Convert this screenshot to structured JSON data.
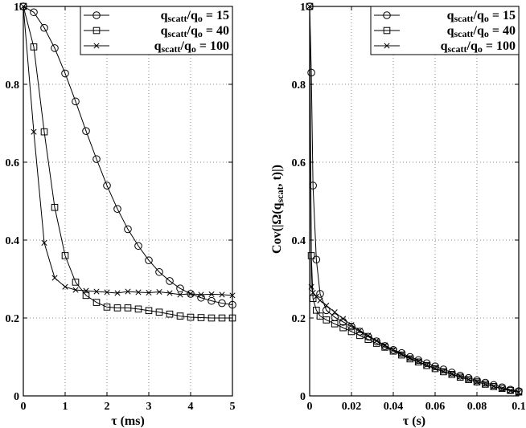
{
  "chart_data": [
    {
      "type": "line",
      "xlabel": "τ   (ms)",
      "ylabel": "",
      "xlim": [
        0,
        5
      ],
      "ylim": [
        0,
        1
      ],
      "xticks": [
        "0",
        "1",
        "2",
        "3",
        "4",
        "5"
      ],
      "yticks": [
        "0",
        "0.2",
        "0.4",
        "0.6",
        "0.8",
        "1"
      ],
      "grid": true,
      "legend_position": "top-right",
      "series": [
        {
          "name": "qscatt/qo = 15",
          "marker": "circle",
          "x": [
            0,
            0.25,
            0.5,
            0.75,
            1.0,
            1.25,
            1.5,
            1.75,
            2.0,
            2.25,
            2.5,
            2.75,
            3.0,
            3.25,
            3.5,
            3.75,
            4.0,
            4.25,
            4.5,
            4.75,
            5.0
          ],
          "y": [
            1.0,
            0.985,
            0.945,
            0.893,
            0.828,
            0.756,
            0.68,
            0.608,
            0.54,
            0.48,
            0.428,
            0.385,
            0.348,
            0.318,
            0.295,
            0.276,
            0.262,
            0.252,
            0.244,
            0.238,
            0.234
          ]
        },
        {
          "name": "qscatt/qo = 40",
          "marker": "square",
          "x": [
            0,
            0.25,
            0.5,
            0.75,
            1.0,
            1.25,
            1.5,
            1.75,
            2.0,
            2.25,
            2.5,
            2.75,
            3.0,
            3.25,
            3.5,
            3.75,
            4.0,
            4.25,
            4.5,
            4.75,
            5.0
          ],
          "y": [
            1.0,
            0.896,
            0.678,
            0.484,
            0.36,
            0.292,
            0.258,
            0.24,
            0.228,
            0.226,
            0.226,
            0.223,
            0.219,
            0.215,
            0.21,
            0.205,
            0.202,
            0.201,
            0.2,
            0.2,
            0.2
          ]
        },
        {
          "name": "qscatt/qo = 100",
          "marker": "x",
          "x": [
            0,
            0.25,
            0.5,
            0.75,
            1.0,
            1.25,
            1.5,
            1.75,
            2.0,
            2.25,
            2.5,
            2.75,
            3.0,
            3.25,
            3.5,
            3.75,
            4.0,
            4.25,
            4.5,
            4.75,
            5.0
          ],
          "y": [
            1.0,
            0.678,
            0.393,
            0.303,
            0.28,
            0.272,
            0.27,
            0.268,
            0.266,
            0.264,
            0.268,
            0.266,
            0.265,
            0.267,
            0.264,
            0.26,
            0.262,
            0.26,
            0.261,
            0.26,
            0.258
          ]
        }
      ]
    },
    {
      "type": "line",
      "xlabel": "τ   (s)",
      "ylabel": "Cov(|Ω(qscat, t)|)",
      "xlim": [
        0,
        0.1
      ],
      "ylim": [
        0,
        1
      ],
      "xticks": [
        "0",
        "0.02",
        "0.04",
        "0.06",
        "0.08",
        "0.1"
      ],
      "yticks": [
        "0",
        "0.2",
        "0.4",
        "0.6",
        "0.8",
        "1"
      ],
      "grid": true,
      "legend_position": "top-right",
      "series": [
        {
          "name": "qscatt/qo = 15",
          "marker": "circle",
          "x": [
            0,
            0.0008,
            0.0016,
            0.0032,
            0.005,
            0.008,
            0.012,
            0.016,
            0.02,
            0.024,
            0.028,
            0.032,
            0.036,
            0.04,
            0.044,
            0.048,
            0.052,
            0.056,
            0.06,
            0.064,
            0.068,
            0.072,
            0.076,
            0.08,
            0.084,
            0.088,
            0.092,
            0.096,
            0.1
          ],
          "y": [
            1.0,
            0.83,
            0.54,
            0.35,
            0.262,
            0.22,
            0.202,
            0.19,
            0.178,
            0.165,
            0.152,
            0.14,
            0.128,
            0.118,
            0.11,
            0.1,
            0.092,
            0.084,
            0.076,
            0.068,
            0.06,
            0.052,
            0.046,
            0.04,
            0.034,
            0.028,
            0.022,
            0.016,
            0.012
          ]
        },
        {
          "name": "qscatt/qo = 40",
          "marker": "square",
          "x": [
            0,
            0.0008,
            0.0016,
            0.0032,
            0.005,
            0.008,
            0.012,
            0.016,
            0.02,
            0.024,
            0.028,
            0.032,
            0.036,
            0.04,
            0.044,
            0.048,
            0.052,
            0.056,
            0.06,
            0.064,
            0.068,
            0.072,
            0.076,
            0.08,
            0.084,
            0.088,
            0.092,
            0.096,
            0.1
          ],
          "y": [
            1.0,
            0.36,
            0.25,
            0.22,
            0.205,
            0.195,
            0.185,
            0.175,
            0.165,
            0.155,
            0.145,
            0.135,
            0.125,
            0.115,
            0.105,
            0.095,
            0.087,
            0.078,
            0.07,
            0.062,
            0.055,
            0.048,
            0.042,
            0.036,
            0.03,
            0.024,
            0.019,
            0.014,
            0.01
          ]
        },
        {
          "name": "qscatt/qo = 100",
          "marker": "x",
          "x": [
            0,
            0.0008,
            0.0016,
            0.0032,
            0.005,
            0.008,
            0.012,
            0.016,
            0.02,
            0.024,
            0.028,
            0.032,
            0.036,
            0.04,
            0.044,
            0.048,
            0.052,
            0.056,
            0.06,
            0.064,
            0.068,
            0.072,
            0.076,
            0.08,
            0.084,
            0.088,
            0.092,
            0.096,
            0.1
          ],
          "y": [
            1.0,
            0.28,
            0.265,
            0.255,
            0.245,
            0.232,
            0.215,
            0.198,
            0.182,
            0.168,
            0.155,
            0.142,
            0.13,
            0.118,
            0.107,
            0.097,
            0.088,
            0.079,
            0.071,
            0.063,
            0.056,
            0.049,
            0.042,
            0.036,
            0.03,
            0.024,
            0.018,
            0.013,
            0.009
          ]
        }
      ]
    }
  ]
}
